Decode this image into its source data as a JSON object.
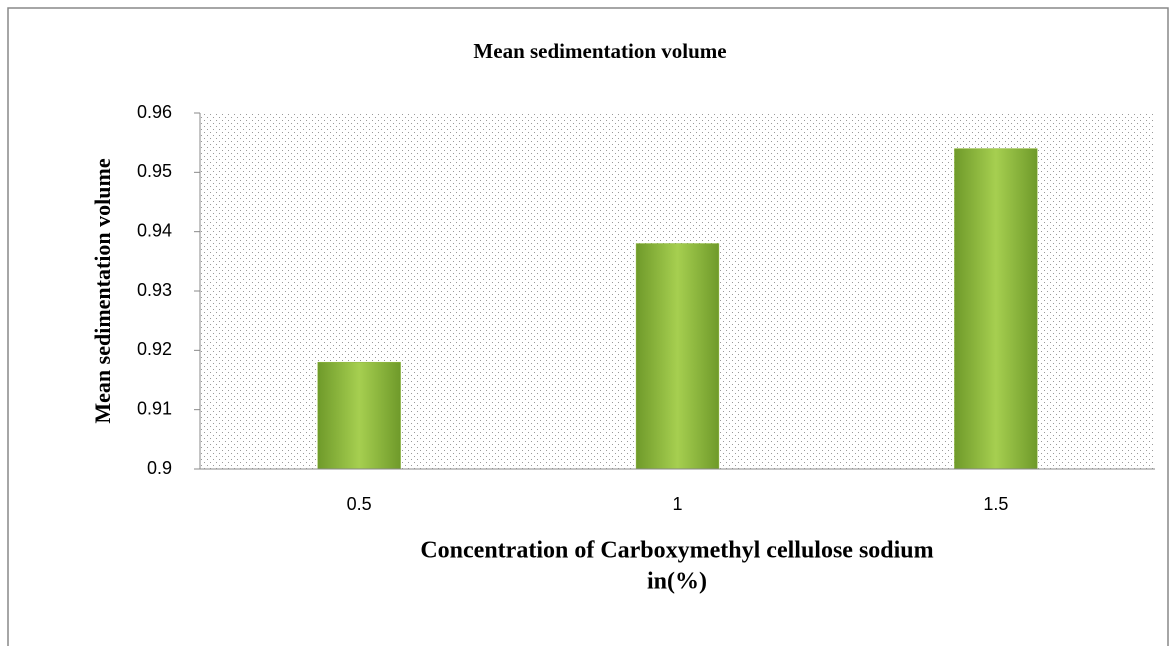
{
  "chart_data": {
    "type": "bar",
    "title": "Mean sedimentation volume",
    "ylabel": "Mean sedimentation volume",
    "xlabel": [
      "Concentration of Carboxymethyl cellulose sodium",
      "in(%)"
    ],
    "categories": [
      "0.5",
      "1",
      "1.5"
    ],
    "values": [
      0.918,
      0.938,
      0.954
    ],
    "color": "#8db53a",
    "ylim": [
      0.9,
      0.96
    ],
    "yticks": [
      0.9,
      0.91,
      0.92,
      0.93,
      0.94,
      0.95,
      0.96
    ],
    "grid": false
  }
}
